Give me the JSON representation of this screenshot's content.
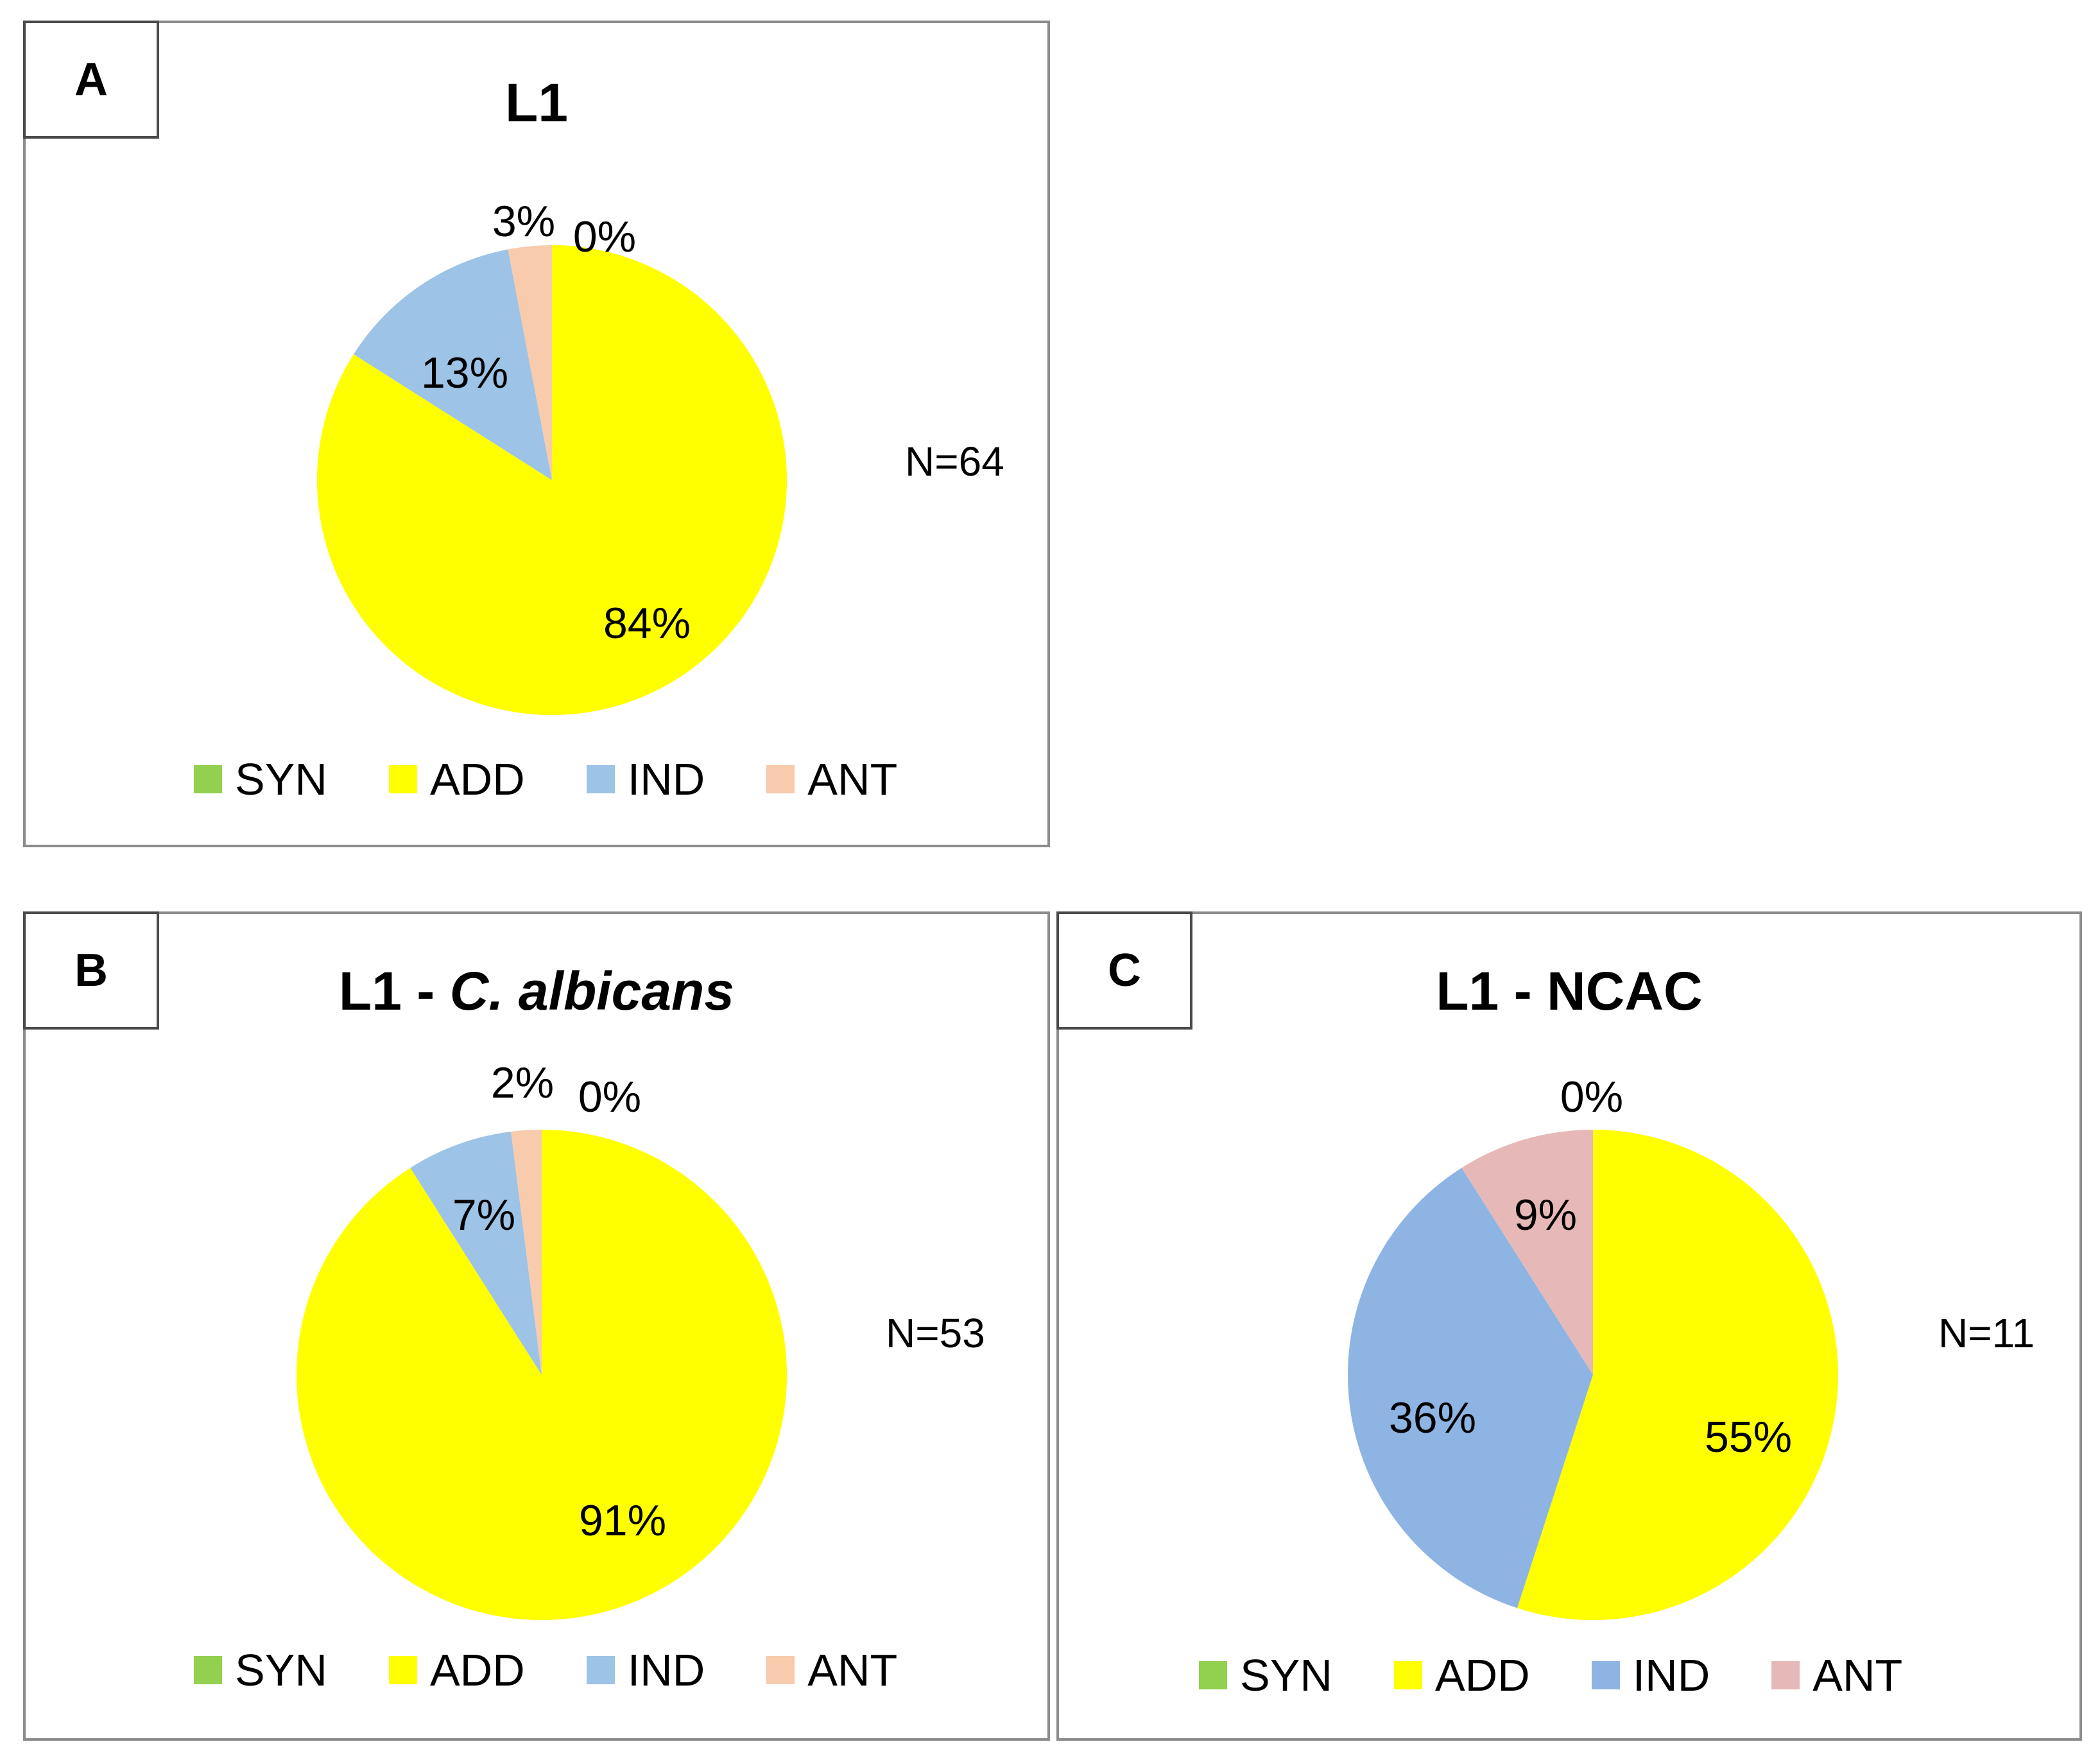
{
  "colors": {
    "SYN": "#92d050",
    "ADD": "#ffff00",
    "IND_light": "#9dc3e6",
    "ANT_light": "#f8cbad",
    "IND_dark": "#8eb4e3",
    "ANT_dark": "#e6b9b8",
    "border": "#8c8c8c"
  },
  "chart_data": [
    {
      "type": "pie",
      "panel": "A",
      "title": "L1",
      "n_label": "N=64",
      "slices": [
        {
          "name": "SYN",
          "value": 0,
          "label": "0%"
        },
        {
          "name": "ADD",
          "value": 84,
          "label": "84%"
        },
        {
          "name": "IND",
          "value": 13,
          "label": "13%"
        },
        {
          "name": "ANT",
          "value": 3,
          "label": "3%"
        }
      ],
      "legend": [
        "SYN",
        "ADD",
        "IND",
        "ANT"
      ]
    },
    {
      "type": "pie",
      "panel": "B",
      "title": "L1 - ",
      "title_italic": "C. albicans",
      "n_label": "N=53",
      "slices": [
        {
          "name": "SYN",
          "value": 0,
          "label": "0%"
        },
        {
          "name": "ADD",
          "value": 91,
          "label": "91%"
        },
        {
          "name": "IND",
          "value": 7,
          "label": "7%"
        },
        {
          "name": "ANT",
          "value": 2,
          "label": "2%"
        }
      ],
      "legend": [
        "SYN",
        "ADD",
        "IND",
        "ANT"
      ]
    },
    {
      "type": "pie",
      "panel": "C",
      "title": "L1 - NCAC",
      "n_label": "N=11",
      "slices": [
        {
          "name": "SYN",
          "value": 0,
          "label": "0%"
        },
        {
          "name": "ADD",
          "value": 55,
          "label": "55%"
        },
        {
          "name": "IND",
          "value": 36,
          "label": "36%"
        },
        {
          "name": "ANT",
          "value": 9,
          "label": "9%"
        }
      ],
      "legend": [
        "SYN",
        "ADD",
        "IND",
        "ANT"
      ]
    }
  ]
}
